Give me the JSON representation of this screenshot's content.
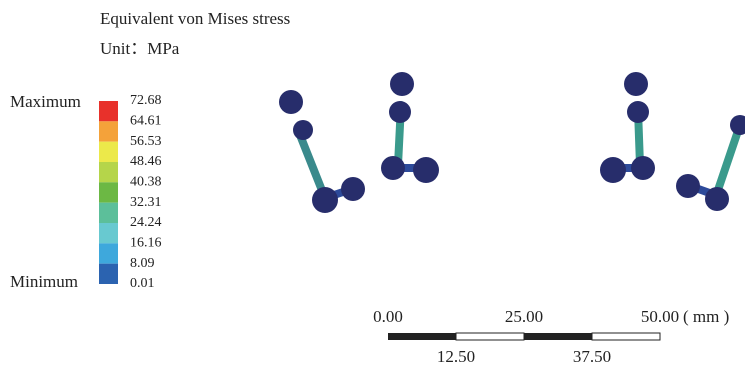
{
  "header": {
    "title": "Equivalent von Mises stress",
    "unit": "Unit：MPa"
  },
  "legend": {
    "max_label": "Maximum",
    "min_label": "Minimum",
    "values": [
      "72.68",
      "64.61",
      "56.53",
      "48.46",
      "40.38",
      "32.31",
      "24.24",
      "16.16",
      "8.09",
      "0.01"
    ],
    "colors": [
      "#e8312b",
      "#f4a23a",
      "#ece94a",
      "#b5d54a",
      "#6cb844",
      "#5cbf9a",
      "#68c9d0",
      "#3ea8dc",
      "#2b63b0"
    ]
  },
  "scale_bar": {
    "top_labels": [
      "0.00",
      "25.00",
      "50.00"
    ],
    "bottom_labels": [
      "12.50",
      "37.50"
    ],
    "unit": "( mm )"
  }
}
